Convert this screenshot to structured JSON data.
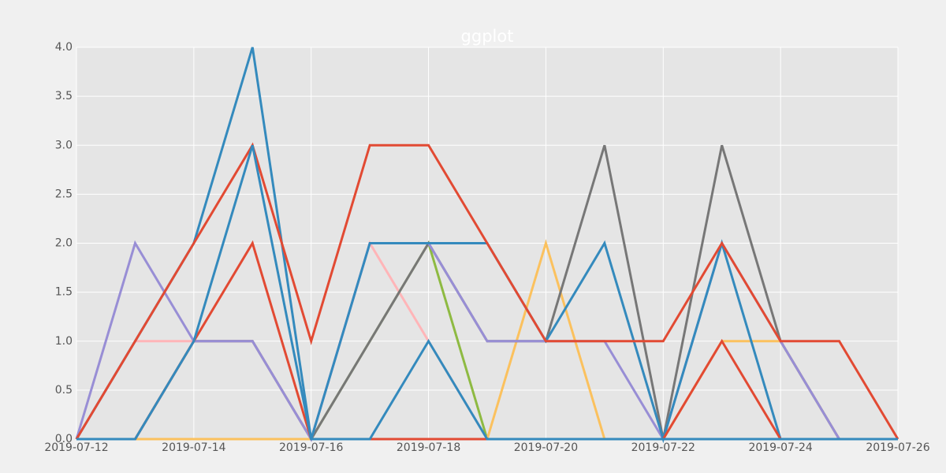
{
  "chart_data": {
    "type": "line",
    "title": "ggplot",
    "x": [
      "2019-07-12",
      "2019-07-13",
      "2019-07-14",
      "2019-07-15",
      "2019-07-16",
      "2019-07-17",
      "2019-07-18",
      "2019-07-19",
      "2019-07-20",
      "2019-07-21",
      "2019-07-22",
      "2019-07-23",
      "2019-07-24",
      "2019-07-25",
      "2019-07-26"
    ],
    "series": [
      {
        "color": "#FFB5B8",
        "values": [
          0,
          1,
          1,
          1,
          0,
          2,
          1,
          0,
          0,
          0,
          0,
          0,
          0,
          0,
          0
        ]
      },
      {
        "color": "#8EBA42",
        "values": [
          0,
          0,
          0,
          0,
          0,
          1,
          2,
          0,
          0,
          0,
          0,
          0,
          0,
          0,
          0
        ]
      },
      {
        "color": "#FBC15E",
        "values": [
          0,
          0,
          0,
          0,
          0,
          0,
          0,
          0,
          2,
          0,
          0,
          1,
          1,
          0,
          0
        ]
      },
      {
        "color": "#777777",
        "values": [
          0,
          0,
          1,
          1,
          0,
          1,
          2,
          1,
          1,
          3,
          0,
          3,
          1,
          0,
          0
        ]
      },
      {
        "color": "#988ED5",
        "values": [
          0,
          2,
          1,
          1,
          0,
          2,
          2,
          1,
          1,
          1,
          0,
          2,
          1,
          0,
          0
        ]
      },
      {
        "color": "#348ABD",
        "values": [
          0,
          1,
          2,
          4,
          0,
          2,
          2,
          2,
          1,
          2,
          0,
          2,
          0,
          0,
          0
        ]
      },
      {
        "color": "#E24A33",
        "values": [
          0,
          1,
          2,
          3,
          1,
          3,
          3,
          2,
          1,
          1,
          1,
          2,
          1,
          1,
          0
        ]
      },
      {
        "color": "#E24A33",
        "values": [
          0,
          0,
          1,
          2,
          0,
          0,
          0,
          0,
          0,
          0,
          0,
          1,
          0,
          0,
          0
        ]
      },
      {
        "color": "#348ABD",
        "values": [
          0,
          0,
          1,
          3,
          0,
          0,
          1,
          0,
          0,
          0,
          0,
          0,
          0,
          0,
          0
        ]
      }
    ],
    "xlim": [
      "2019-07-12",
      "2019-07-26"
    ],
    "xticks": [
      "2019-07-12",
      "2019-07-14",
      "2019-07-16",
      "2019-07-18",
      "2019-07-20",
      "2019-07-22",
      "2019-07-24",
      "2019-07-26"
    ],
    "ylim": [
      0,
      4
    ],
    "yticks": [
      {
        "value": 0,
        "label": "0.0"
      },
      {
        "value": 0.5,
        "label": "0.5"
      },
      {
        "value": 1,
        "label": "1.0"
      },
      {
        "value": 1.5,
        "label": "1.5"
      },
      {
        "value": 2,
        "label": "2.0"
      },
      {
        "value": 2.5,
        "label": "2.5"
      },
      {
        "value": 3,
        "label": "3.0"
      },
      {
        "value": 3.5,
        "label": "3.5"
      },
      {
        "value": 4,
        "label": "4.0"
      }
    ],
    "grid": true
  }
}
